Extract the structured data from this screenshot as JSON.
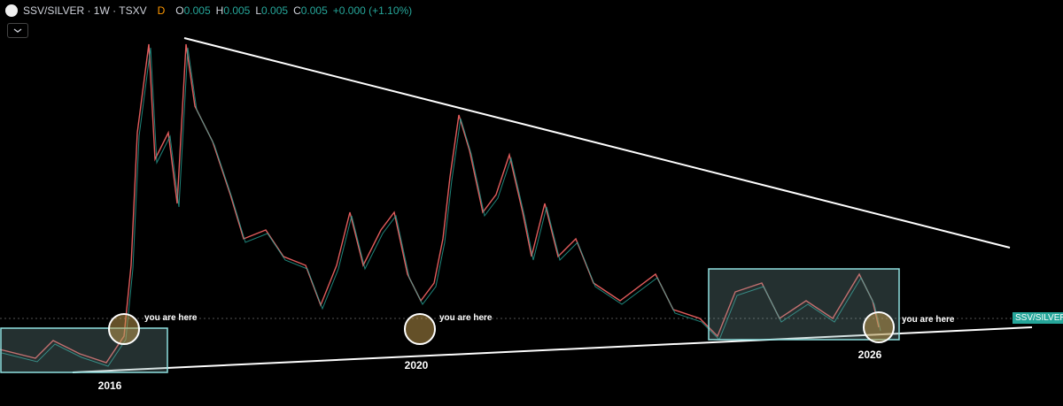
{
  "header": {
    "symbol": "SSV/SILVER · 1W · TSXV",
    "market_status": "D",
    "ohlc": [
      {
        "label": "O",
        "value": "0.005"
      },
      {
        "label": "H",
        "value": "0.005"
      },
      {
        "label": "L",
        "value": "0.005"
      },
      {
        "label": "C",
        "value": "0.005"
      }
    ],
    "change": "+0.000 (+1.10%)"
  },
  "annotations": [
    "you are here",
    "you are here",
    "you are here"
  ],
  "years": [
    "2016",
    "2020",
    "2026"
  ],
  "price_tag": "SSV/SILVER"
}
